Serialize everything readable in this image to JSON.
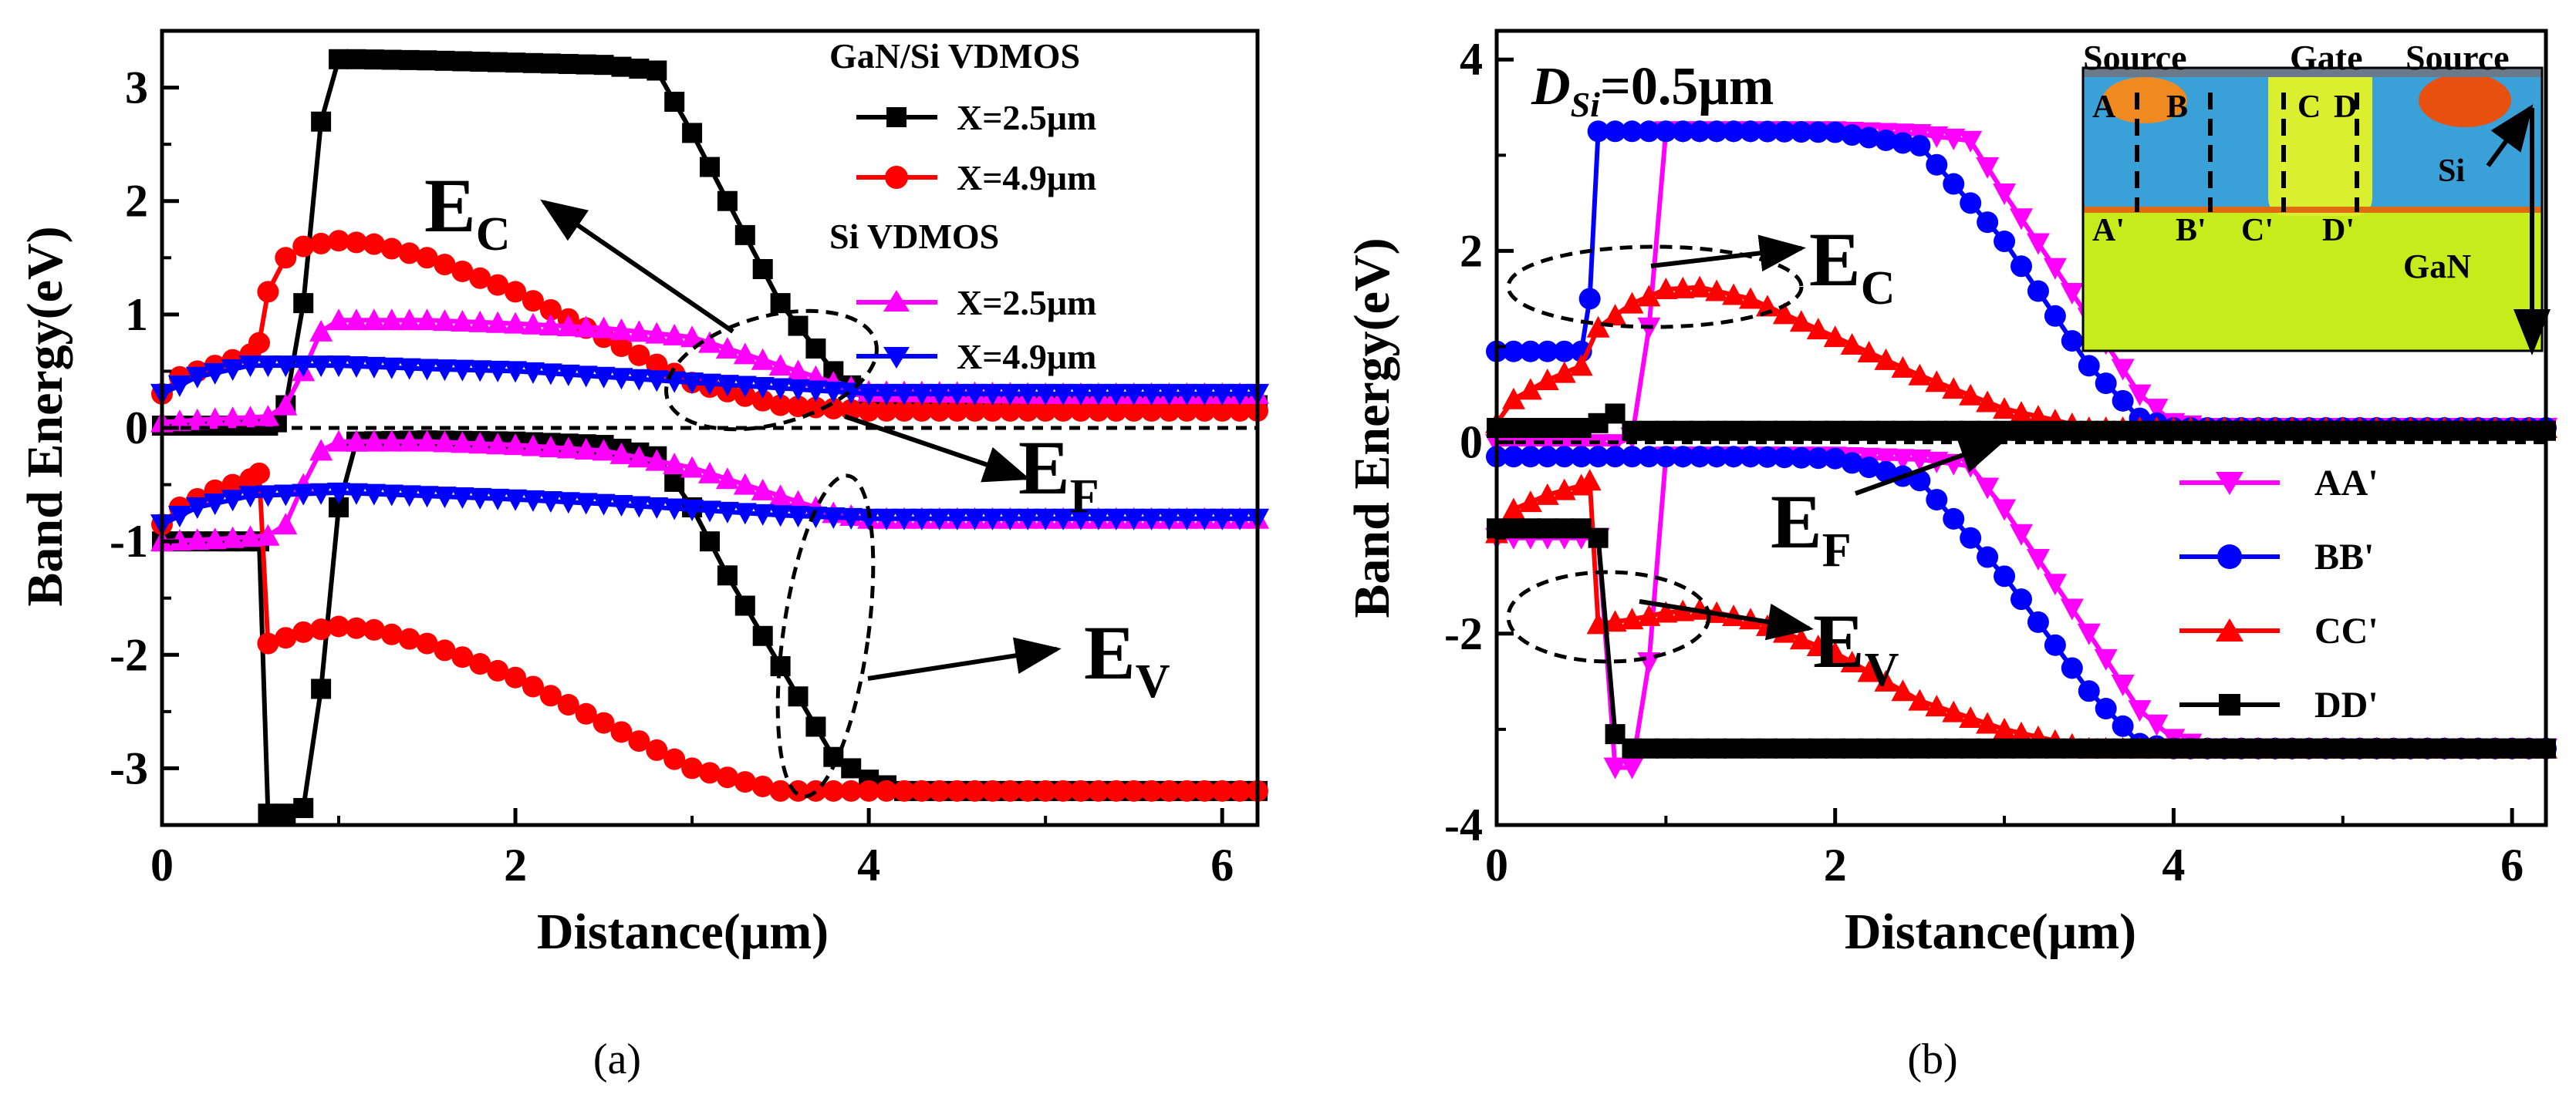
{
  "panels": [
    {
      "id": "a",
      "caption": "(a)",
      "xlabel": "Distance(μm)",
      "ylabel": "Band Energy(eV)"
    },
    {
      "id": "b",
      "caption": "(b)",
      "xlabel": "Distance(μm)",
      "ylabel": "Band Energy(eV)",
      "dsi_label": "D",
      "dsi_sub": "Si",
      "dsi_value": "=0.5μm",
      "inset": {
        "source_left": "Source",
        "gate": "Gate",
        "source_right": "Source",
        "A": "A",
        "B": "B",
        "C": "C",
        "D": "D",
        "A2": "A'",
        "B2": "B'",
        "C2": "C'",
        "D2": "D'",
        "si": "Si",
        "gan": "GaN"
      }
    }
  ],
  "colors": {
    "black": "#000000",
    "red": "#ff0000",
    "magenta": "#ff00ff",
    "blue": "#0000ff"
  },
  "chart_data": [
    {
      "type": "line",
      "xlabel": "Distance(μm)",
      "ylabel": "Band Energy(eV)",
      "xlim": [
        0,
        6.2
      ],
      "ylim": [
        -3.5,
        3.5
      ],
      "xticks": [
        0,
        2,
        4,
        6
      ],
      "yticks": [
        -3,
        -2,
        -1,
        0,
        1,
        2,
        3
      ],
      "legend": {
        "position": "top-right",
        "groups": [
          {
            "title": "GaN/Si VDMOS",
            "entries": [
              "X=2.5μm",
              "X=4.9μm"
            ]
          },
          {
            "title": "Si VDMOS",
            "entries": [
              "X=2.5μm",
              "X=4.9μm"
            ]
          }
        ]
      },
      "annotations": [
        {
          "text": "E",
          "sub": "C"
        },
        {
          "text": "E",
          "sub": "F"
        },
        {
          "text": "E",
          "sub": "V"
        }
      ],
      "fermi_level": 0,
      "series": [
        {
          "name": "X=2.5μm",
          "group": "GaN/Si VDMOS",
          "band": "Ec",
          "color": "#000000",
          "marker": "square",
          "x": [
            0,
            0.3,
            0.55,
            0.6,
            0.65,
            0.7,
            0.8,
            0.9,
            1.0,
            1.1,
            1.5,
            2.0,
            2.5,
            2.8,
            3.0,
            3.2,
            3.5,
            3.8,
            4.0,
            4.2,
            5.0,
            6.2
          ],
          "y": [
            0.02,
            0.02,
            0.02,
            0.02,
            0.05,
            0.2,
            1.1,
            2.7,
            3.25,
            3.25,
            3.24,
            3.22,
            3.2,
            3.15,
            2.6,
            2.0,
            1.1,
            0.5,
            0.25,
            0.2,
            0.2,
            0.2
          ]
        },
        {
          "name": "X=2.5μm",
          "group": "GaN/Si VDMOS",
          "band": "Ev",
          "color": "#000000",
          "marker": "square",
          "x": [
            0,
            0.3,
            0.55,
            0.6,
            0.7,
            0.8,
            0.9,
            1.0,
            1.1,
            1.5,
            2.0,
            2.5,
            2.8,
            3.0,
            3.2,
            3.5,
            3.8,
            4.0,
            4.2,
            5.0,
            6.2
          ],
          "y": [
            -1.0,
            -1.0,
            -1.0,
            -3.4,
            -3.4,
            -3.35,
            -2.3,
            -0.7,
            -0.12,
            -0.11,
            -0.12,
            -0.15,
            -0.25,
            -0.7,
            -1.3,
            -2.1,
            -2.9,
            -3.1,
            -3.2,
            -3.2,
            -3.2
          ]
        },
        {
          "name": "X=4.9μm",
          "group": "GaN/Si VDMOS",
          "band": "Ec",
          "color": "#ff0000",
          "marker": "circle",
          "x": [
            0,
            0.1,
            0.3,
            0.5,
            0.55,
            0.6,
            0.7,
            0.8,
            1.0,
            1.2,
            1.5,
            2.0,
            2.5,
            3.0,
            3.5,
            4.0,
            5.0,
            6.2
          ],
          "y": [
            0.3,
            0.45,
            0.55,
            0.65,
            0.75,
            1.2,
            1.5,
            1.6,
            1.65,
            1.62,
            1.5,
            1.2,
            0.8,
            0.4,
            0.2,
            0.15,
            0.15,
            0.15
          ]
        },
        {
          "name": "X=4.9μm",
          "group": "GaN/Si VDMOS",
          "band": "Ev",
          "color": "#ff0000",
          "marker": "circle",
          "x": [
            0,
            0.1,
            0.3,
            0.5,
            0.55,
            0.6,
            0.7,
            0.8,
            1.0,
            1.2,
            1.5,
            2.0,
            2.5,
            3.0,
            3.5,
            4.0,
            5.0,
            6.2
          ],
          "y": [
            -0.85,
            -0.7,
            -0.55,
            -0.45,
            -0.4,
            -1.9,
            -1.85,
            -1.8,
            -1.75,
            -1.78,
            -1.9,
            -2.2,
            -2.6,
            -3.0,
            -3.2,
            -3.2,
            -3.2,
            -3.2
          ]
        },
        {
          "name": "X=2.5μm",
          "group": "Si VDMOS",
          "band": "Ec",
          "color": "#ff00ff",
          "marker": "triangle-up",
          "x": [
            0,
            0.3,
            0.6,
            0.7,
            0.8,
            0.9,
            1.0,
            1.5,
            2.0,
            2.5,
            3.0,
            3.5,
            3.8,
            4.0,
            5.0,
            6.2
          ],
          "y": [
            0.05,
            0.08,
            0.1,
            0.2,
            0.5,
            0.85,
            0.95,
            0.95,
            0.92,
            0.88,
            0.8,
            0.55,
            0.4,
            0.32,
            0.3,
            0.3
          ]
        },
        {
          "name": "X=2.5μm",
          "group": "Si VDMOS",
          "band": "Ev",
          "color": "#ff00ff",
          "marker": "triangle-up",
          "x": [
            0,
            0.3,
            0.6,
            0.7,
            0.8,
            0.9,
            1.0,
            1.5,
            2.0,
            2.5,
            3.0,
            3.5,
            3.8,
            4.0,
            5.0,
            6.2
          ],
          "y": [
            -1.0,
            -0.98,
            -0.95,
            -0.85,
            -0.5,
            -0.2,
            -0.12,
            -0.12,
            -0.15,
            -0.2,
            -0.35,
            -0.6,
            -0.75,
            -0.8,
            -0.8,
            -0.8
          ]
        },
        {
          "name": "X=4.9μm",
          "group": "Si VDMOS",
          "band": "Ec",
          "color": "#0000ff",
          "marker": "triangle-down",
          "x": [
            0,
            0.2,
            0.5,
            1.0,
            1.5,
            2.0,
            2.5,
            3.0,
            3.5,
            4.0,
            5.0,
            6.2
          ],
          "y": [
            0.3,
            0.45,
            0.55,
            0.55,
            0.52,
            0.5,
            0.45,
            0.4,
            0.35,
            0.3,
            0.3,
            0.3
          ]
        },
        {
          "name": "X=4.9μm",
          "group": "Si VDMOS",
          "band": "Ev",
          "color": "#0000ff",
          "marker": "triangle-down",
          "x": [
            0,
            0.2,
            0.5,
            1.0,
            1.5,
            2.0,
            2.5,
            3.0,
            3.5,
            4.0,
            5.0,
            6.2
          ],
          "y": [
            -0.85,
            -0.7,
            -0.6,
            -0.57,
            -0.6,
            -0.63,
            -0.67,
            -0.72,
            -0.77,
            -0.8,
            -0.8,
            -0.8
          ]
        }
      ]
    },
    {
      "type": "line",
      "xlabel": "Distance(μm)",
      "ylabel": "Band Energy(eV)",
      "xlim": [
        0,
        6.2
      ],
      "ylim": [
        -4,
        4.3
      ],
      "xticks": [
        0,
        2,
        4,
        6
      ],
      "yticks": [
        -4,
        -2,
        0,
        2,
        4
      ],
      "legend": {
        "position": "bottom-right",
        "entries": [
          "AA'",
          "BB'",
          "CC'",
          "DD'"
        ]
      },
      "annotations": [
        {
          "text": "E",
          "sub": "C"
        },
        {
          "text": "E",
          "sub": "F"
        },
        {
          "text": "E",
          "sub": "V"
        }
      ],
      "fermi_level": 0,
      "series": [
        {
          "name": "AA'",
          "band": "Ec",
          "color": "#ff00ff",
          "marker": "triangle-down",
          "x": [
            0,
            0.3,
            0.6,
            0.7,
            0.8,
            0.9,
            1.0,
            1.5,
            2.0,
            2.5,
            2.8,
            3.0,
            3.5,
            3.8,
            4.0,
            4.2,
            5.0,
            6.2
          ],
          "y": [
            -0.02,
            -0.02,
            -0.02,
            -0.02,
            0.05,
            1.2,
            3.25,
            3.25,
            3.25,
            3.22,
            3.15,
            2.6,
            1.3,
            0.5,
            0.2,
            0.15,
            0.15,
            0.15
          ]
        },
        {
          "name": "AA'",
          "band": "Ev",
          "color": "#ff00ff",
          "marker": "triangle-down",
          "x": [
            0,
            0.3,
            0.6,
            0.7,
            0.8,
            0.9,
            1.0,
            1.5,
            2.0,
            2.5,
            2.8,
            3.0,
            3.5,
            3.8,
            4.0,
            4.2,
            5.0,
            6.2
          ],
          "y": [
            -1.0,
            -1.0,
            -1.0,
            -3.4,
            -3.4,
            -2.3,
            -0.15,
            -0.15,
            -0.15,
            -0.18,
            -0.25,
            -0.7,
            -2.0,
            -2.8,
            -3.1,
            -3.2,
            -3.2,
            -3.2
          ]
        },
        {
          "name": "BB'",
          "band": "Ec",
          "color": "#0000ff",
          "marker": "circle",
          "x": [
            0,
            0.2,
            0.5,
            0.55,
            0.6,
            0.7,
            1.0,
            1.5,
            2.0,
            2.5,
            3.0,
            3.5,
            3.8,
            4.0,
            5.0,
            6.2
          ],
          "y": [
            0.95,
            0.95,
            0.95,
            1.5,
            3.25,
            3.25,
            3.25,
            3.25,
            3.24,
            3.1,
            2.1,
            0.8,
            0.25,
            0.15,
            0.15,
            0.15
          ]
        },
        {
          "name": "BB'",
          "band": "Ev",
          "color": "#0000ff",
          "marker": "circle",
          "x": [
            0,
            0.2,
            0.5,
            1.0,
            1.5,
            2.0,
            2.5,
            3.0,
            3.5,
            3.8,
            4.0,
            5.0,
            6.2
          ],
          "y": [
            -0.15,
            -0.15,
            -0.15,
            -0.15,
            -0.15,
            -0.17,
            -0.4,
            -1.4,
            -2.6,
            -3.15,
            -3.2,
            -3.2,
            -3.2
          ]
        },
        {
          "name": "CC'",
          "band": "Ec",
          "color": "#ff0000",
          "marker": "triangle-up",
          "x": [
            0,
            0.1,
            0.3,
            0.5,
            0.6,
            0.8,
            1.0,
            1.2,
            1.5,
            2.0,
            2.5,
            3.0,
            3.5,
            4.0,
            5.0,
            6.2
          ],
          "y": [
            0.2,
            0.45,
            0.65,
            0.8,
            1.2,
            1.45,
            1.6,
            1.62,
            1.5,
            1.1,
            0.7,
            0.35,
            0.15,
            0.15,
            0.15,
            0.15
          ]
        },
        {
          "name": "CC'",
          "band": "Ev",
          "color": "#ff0000",
          "marker": "triangle-up",
          "x": [
            0,
            0.1,
            0.3,
            0.5,
            0.55,
            0.6,
            0.8,
            1.0,
            1.2,
            1.5,
            2.0,
            2.5,
            3.0,
            3.5,
            4.0,
            5.0,
            6.2
          ],
          "y": [
            -0.95,
            -0.7,
            -0.55,
            -0.45,
            -0.4,
            -1.9,
            -1.85,
            -1.78,
            -1.75,
            -1.85,
            -2.2,
            -2.7,
            -3.0,
            -3.2,
            -3.2,
            -3.2,
            -3.2
          ]
        },
        {
          "name": "DD'",
          "band": "Ec",
          "color": "#000000",
          "marker": "square",
          "x": [
            0,
            0.2,
            0.5,
            0.6,
            0.7,
            0.8,
            1.0,
            1.5,
            2.0,
            3.0,
            4.0,
            5.0,
            6.2
          ],
          "y": [
            0.15,
            0.15,
            0.15,
            0.2,
            0.3,
            0.12,
            0.12,
            0.12,
            0.12,
            0.12,
            0.12,
            0.12,
            0.12
          ]
        },
        {
          "name": "DD'",
          "band": "Ev",
          "color": "#000000",
          "marker": "square",
          "x": [
            0,
            0.2,
            0.5,
            0.6,
            0.7,
            0.8,
            1.0,
            1.5,
            2.0,
            3.0,
            4.0,
            5.0,
            6.2
          ],
          "y": [
            -0.9,
            -0.9,
            -0.9,
            -1.0,
            -3.05,
            -3.2,
            -3.2,
            -3.2,
            -3.2,
            -3.2,
            -3.2,
            -3.2,
            -3.2
          ]
        }
      ]
    }
  ]
}
